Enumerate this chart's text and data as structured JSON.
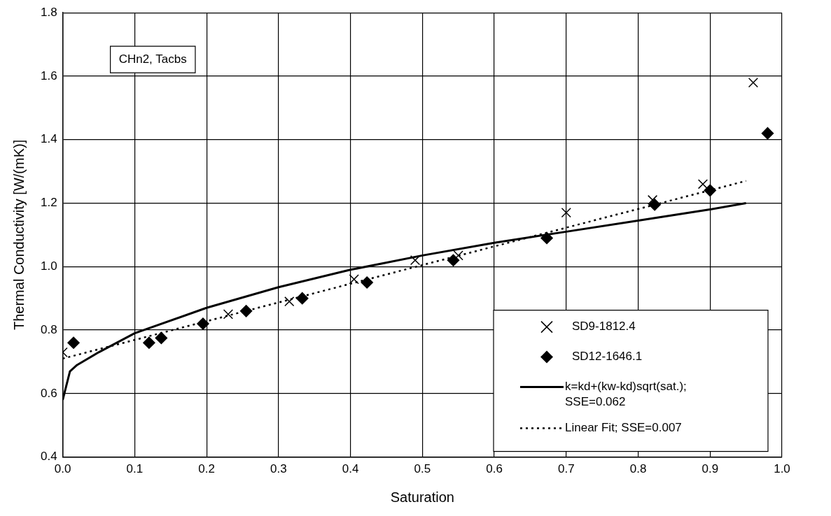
{
  "chart_data": {
    "type": "scatter",
    "xlabel": "Saturation",
    "ylabel": "Thermal Conductivity [W/(mK)]",
    "xlim": [
      0,
      1
    ],
    "xticks": [
      {
        "value": 0,
        "label": "0.0"
      },
      0.1,
      0.2,
      0.3,
      0.4,
      0.5,
      0.6,
      0.7,
      0.8,
      0.9,
      {
        "value": 1,
        "label": "1.0"
      }
    ],
    "ylim": [
      0.4,
      1.8
    ],
    "yticks": [
      0.4,
      0.6,
      0.8,
      {
        "value": 1,
        "label": "1.0"
      },
      1.2,
      1.4,
      1.6,
      1.8
    ],
    "grid": true,
    "legend": "bottom right",
    "annotations": [
      "CHn2, Tacbs"
    ],
    "series": [
      {
        "name": "SD9-1812.4",
        "type": "scatter",
        "marker": "cross",
        "color": "#000000",
        "x": [
          0.0,
          0.23,
          0.315,
          0.405,
          0.49,
          0.55,
          0.7,
          0.82,
          0.89,
          0.96
        ],
        "values": [
          0.73,
          0.85,
          0.89,
          0.96,
          1.02,
          1.035,
          1.17,
          1.21,
          1.26,
          1.58
        ]
      },
      {
        "name": "SD12-1646.1",
        "type": "scatter",
        "marker": "diamond",
        "color": "#000000",
        "x": [
          0.015,
          0.12,
          0.137,
          0.195,
          0.255,
          0.333,
          0.423,
          0.543,
          0.673,
          0.823,
          0.9,
          0.98
        ],
        "values": [
          0.76,
          0.76,
          0.775,
          0.82,
          0.86,
          0.9,
          0.95,
          1.02,
          1.09,
          1.195,
          1.24,
          1.42
        ]
      },
      {
        "name": "k=kd+(kw-kd)sqrt(sat.); SSE=0.062",
        "type": "line",
        "marker": "none",
        "line_style": "solid",
        "color": "#000000",
        "x": [
          0,
          0.01,
          0.02,
          0.05,
          0.1,
          0.2,
          0.3,
          0.4,
          0.5,
          0.6,
          0.7,
          0.8,
          0.9,
          0.95
        ],
        "values": [
          0.58,
          0.67,
          0.69,
          0.73,
          0.79,
          0.87,
          0.935,
          0.99,
          1.035,
          1.075,
          1.11,
          1.145,
          1.18,
          1.2
        ]
      },
      {
        "name": "Linear Fit; SSE=0.007",
        "type": "line",
        "marker": "none",
        "line_style": "dotted",
        "color": "#000000",
        "x": [
          0,
          0.95
        ],
        "values": [
          0.71,
          1.27
        ]
      }
    ]
  }
}
